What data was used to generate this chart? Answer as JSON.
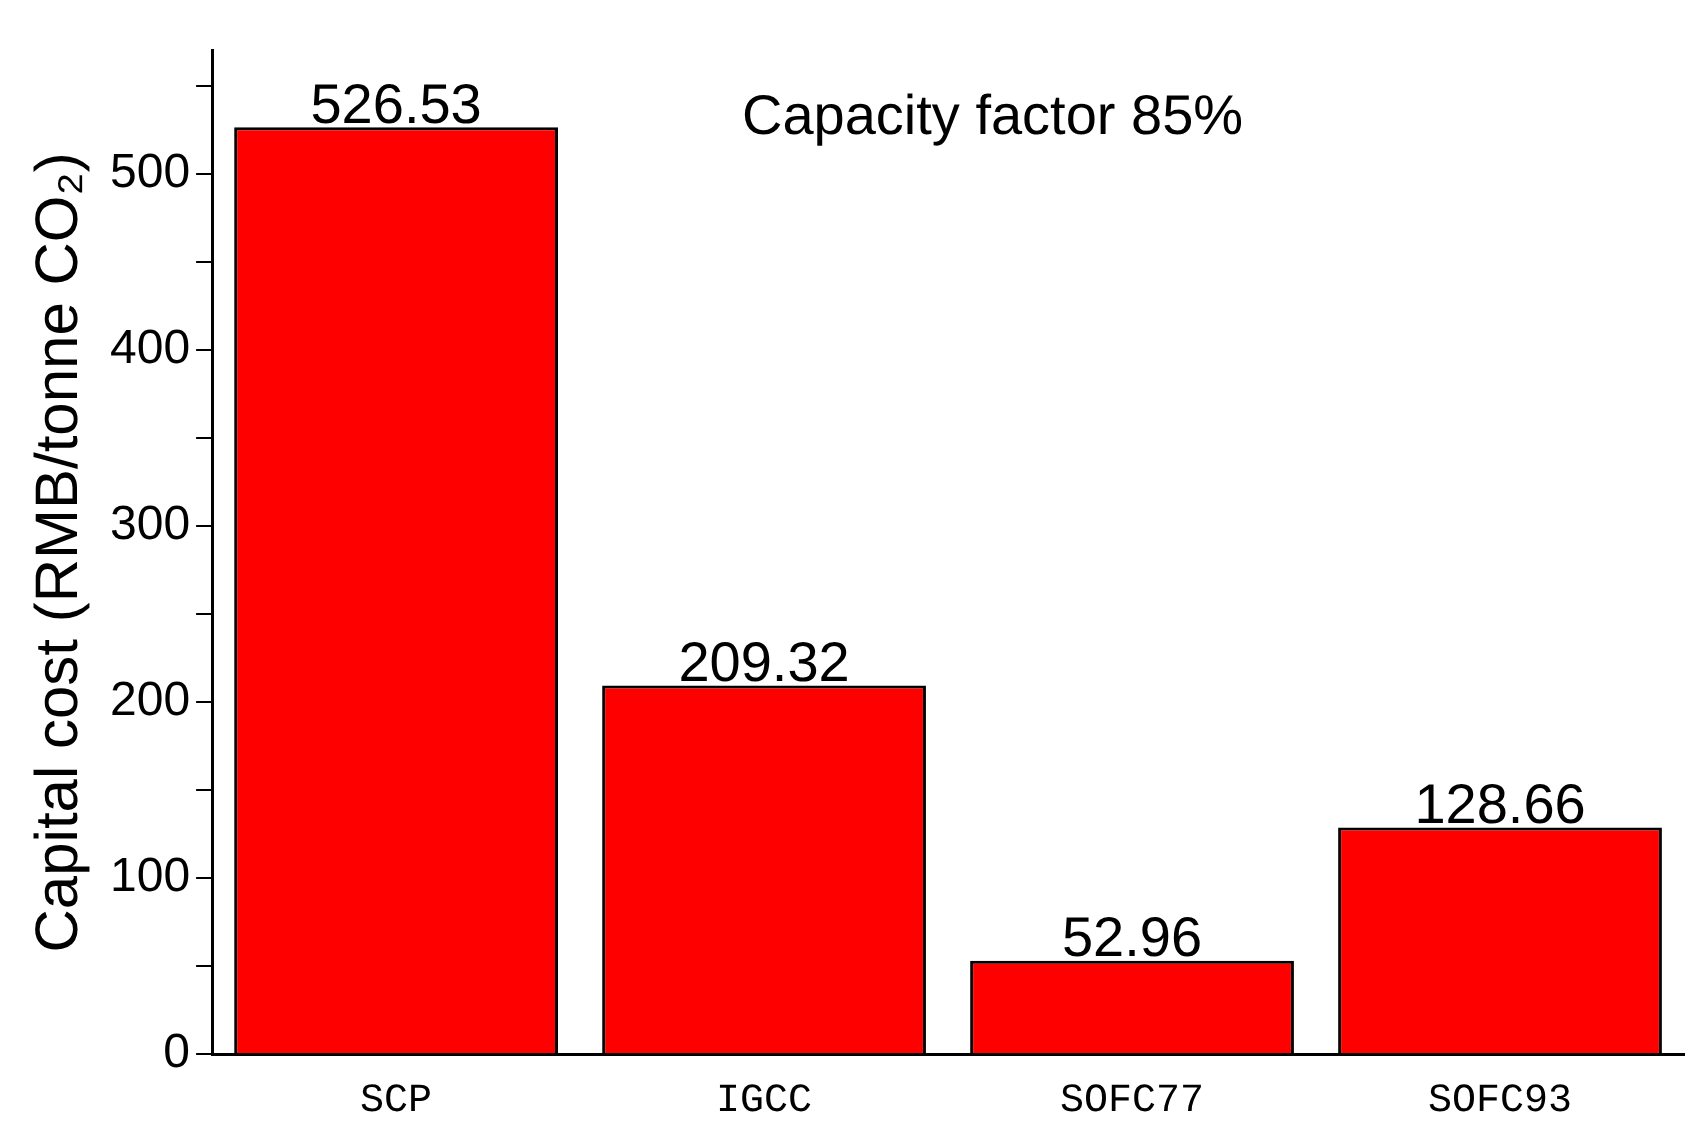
{
  "chart_data": {
    "type": "bar",
    "ylabel": "Capital cost (RMB/tonne CO₂)",
    "annotations": [
      "Capacity factor 85%"
    ],
    "categories": [
      "SCP",
      "IGCC",
      "SOFC77",
      "SOFC93"
    ],
    "values": [
      526.53,
      209.32,
      52.96,
      128.66
    ],
    "color": "#ff0000",
    "data_labels": true,
    "ylim": [
      0,
      570
    ],
    "yticks": [
      0,
      {
        "value": 50,
        "label": null
      },
      100,
      {
        "value": 150,
        "label": null
      },
      200,
      {
        "value": 250,
        "label": null
      },
      300,
      {
        "value": 350,
        "label": null
      },
      400,
      {
        "value": 450,
        "label": null
      },
      500,
      {
        "value": 550,
        "label": null
      }
    ],
    "grid": false,
    "legend": false
  }
}
